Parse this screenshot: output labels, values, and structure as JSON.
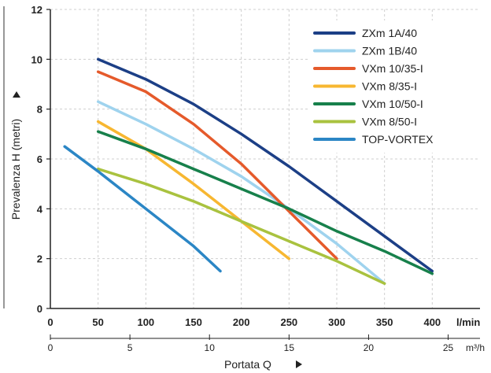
{
  "chart_data": {
    "type": "line",
    "xlabel": "Portata Q",
    "ylabel": "Prevalenza H (metri)",
    "x_unit": "l/min",
    "x2_unit": "m³/h",
    "xlim": [
      0,
      450
    ],
    "ylim": [
      0,
      12
    ],
    "x_ticks": [
      0,
      50,
      100,
      150,
      200,
      250,
      300,
      350,
      400
    ],
    "x2_ticks": [
      0,
      5,
      10,
      15,
      20,
      25
    ],
    "y_ticks": [
      0,
      2,
      4,
      6,
      8,
      10,
      12
    ],
    "grid": true,
    "legend_position": "top-right",
    "series": [
      {
        "name": "ZXm 1A/40",
        "color": "#1c3f86",
        "x": [
          50,
          100,
          150,
          200,
          250,
          300,
          350,
          400
        ],
        "y": [
          10.0,
          9.2,
          8.2,
          7.0,
          5.7,
          4.3,
          2.9,
          1.5
        ]
      },
      {
        "name": "ZXm 1B/40",
        "color": "#9fd3ee",
        "x": [
          50,
          100,
          150,
          200,
          250,
          300,
          350
        ],
        "y": [
          8.3,
          7.4,
          6.4,
          5.3,
          4.0,
          2.6,
          1.0
        ]
      },
      {
        "name": "VXm 10/35-I",
        "color": "#e55a2b",
        "x": [
          50,
          100,
          150,
          200,
          250,
          300
        ],
        "y": [
          9.5,
          8.7,
          7.4,
          5.8,
          3.9,
          2.0
        ]
      },
      {
        "name": "VXm 8/35-I",
        "color": "#f7b731",
        "x": [
          50,
          100,
          150,
          200,
          250
        ],
        "y": [
          7.5,
          6.4,
          5.0,
          3.5,
          2.0
        ]
      },
      {
        "name": "VXm 10/50-I",
        "color": "#17804b",
        "x": [
          50,
          100,
          150,
          200,
          250,
          300,
          350,
          400
        ],
        "y": [
          7.1,
          6.4,
          5.6,
          4.8,
          4.0,
          3.1,
          2.3,
          1.4
        ]
      },
      {
        "name": "VXm 8/50-I",
        "color": "#a9c23f",
        "x": [
          50,
          100,
          150,
          200,
          250,
          300,
          350
        ],
        "y": [
          5.6,
          5.0,
          4.3,
          3.5,
          2.7,
          1.9,
          1.0
        ]
      },
      {
        "name": "TOP-VORTEX",
        "color": "#2b86c5",
        "x": [
          15,
          50,
          100,
          150,
          178
        ],
        "y": [
          6.5,
          5.5,
          4.0,
          2.5,
          1.5
        ]
      }
    ]
  }
}
